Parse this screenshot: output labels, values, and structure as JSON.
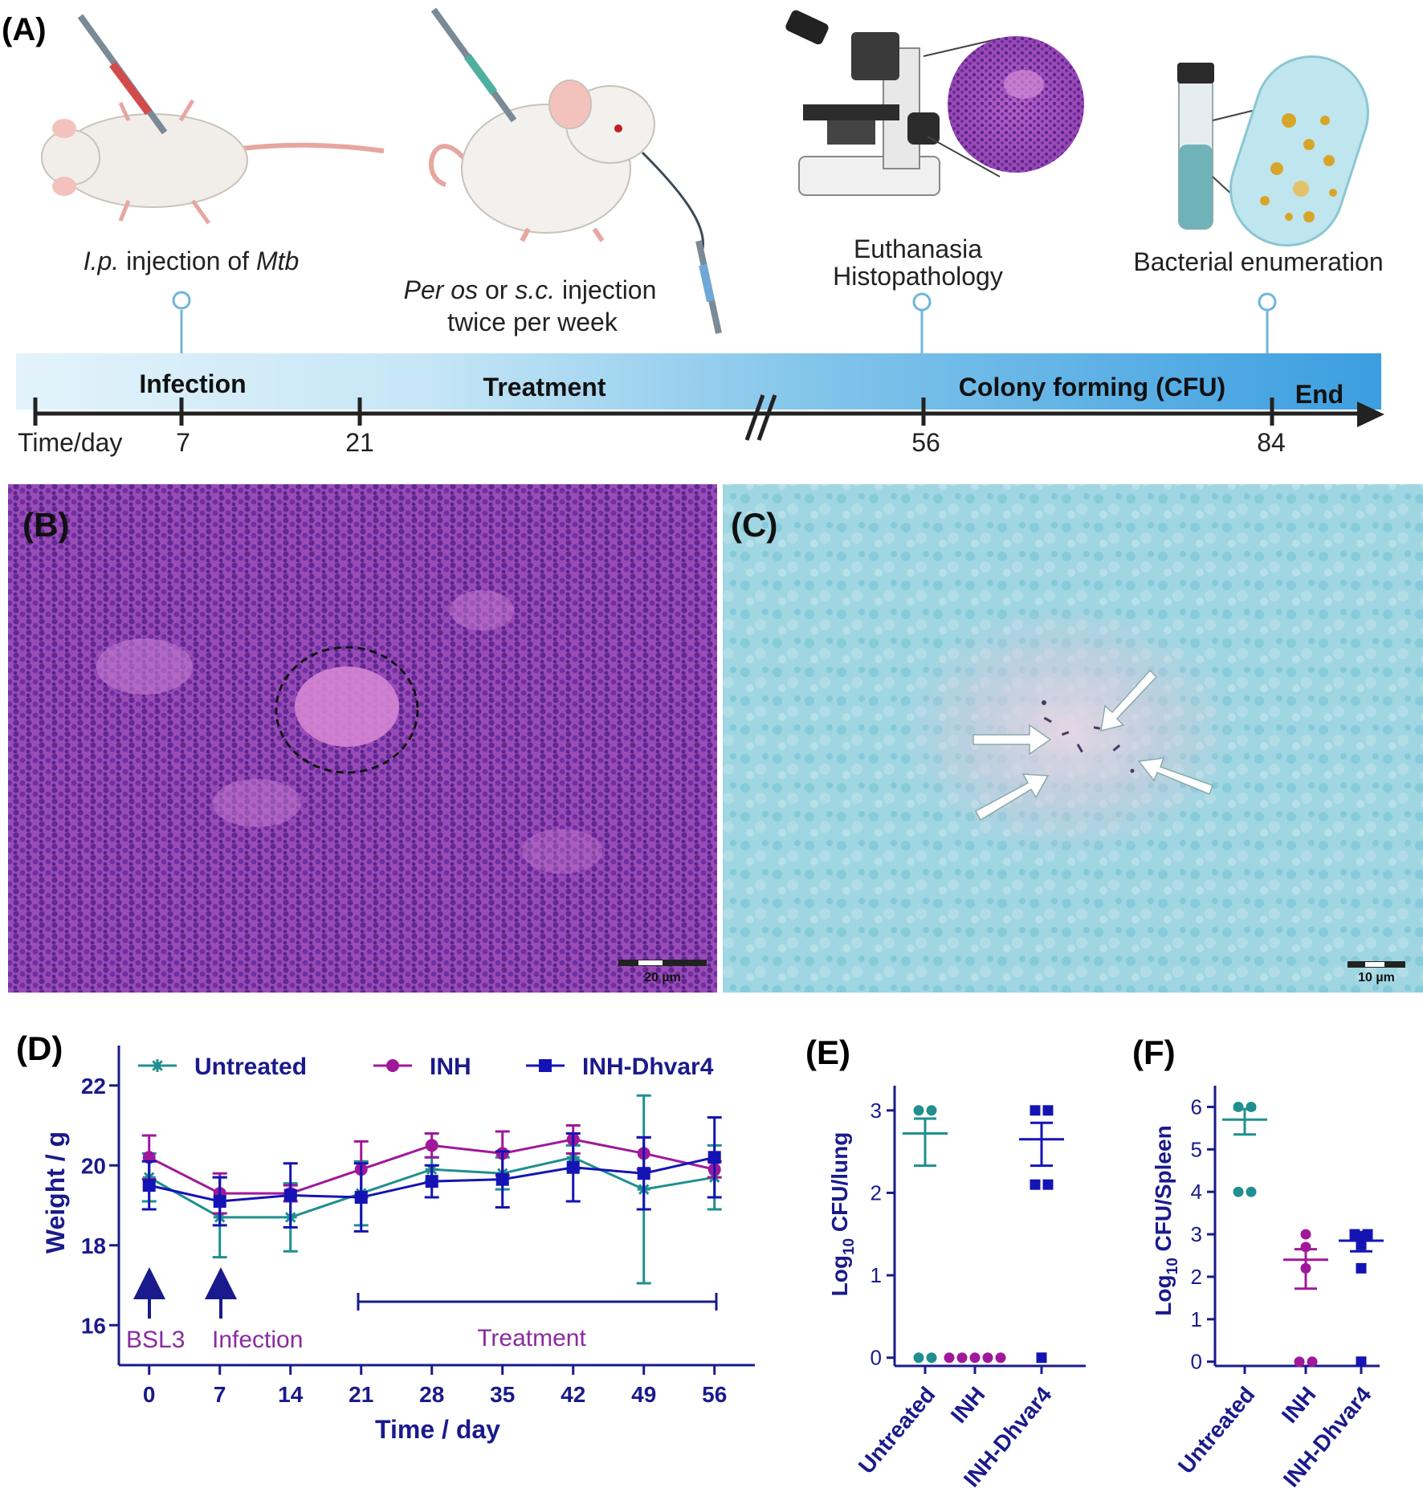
{
  "panelA": {
    "label": "(A)",
    "step1": {
      "pre": "I.p.",
      "mid": " injection of ",
      "post": "Mtb"
    },
    "step2": {
      "pre": "Per os",
      "mid": " or ",
      "mid2": "s.c.",
      "post": " injection",
      "line2": "twice per week"
    },
    "step3": {
      "line1": "Euthanasia",
      "line2": "Histopathology"
    },
    "step4": {
      "line1": "Bacterial enumeration"
    },
    "phases": [
      "Infection",
      "Treatment",
      "Colony forming (CFU)",
      "End"
    ],
    "axis_label": "Time/day",
    "ticks": [
      "7",
      "21",
      "56",
      "84"
    ]
  },
  "panelB": {
    "label": "(B)",
    "scalebar": "20 µm"
  },
  "panelC": {
    "label": "(C)",
    "scalebar": "10 µm"
  },
  "colors": {
    "untreated": "#1f8f8f",
    "inh": "#a0189a",
    "inhd": "#1414b4",
    "axis": "#1a1a8c",
    "annot": "#8a2aa0"
  },
  "panelD": {
    "label": "(D)",
    "annotations": {
      "bsl3": "BSL3",
      "infection": "Infection",
      "treatment": "Treatment"
    }
  },
  "panelE": {
    "label": "(E)"
  },
  "panelF": {
    "label": "(F)"
  },
  "chart_data": [
    {
      "type": "line",
      "panel": "D",
      "xlabel": "Time / day",
      "ylabel": "Weight / g",
      "x": [
        0,
        7,
        14,
        21,
        28,
        35,
        42,
        49,
        56
      ],
      "xticks": [
        "0",
        "7",
        "14",
        "21",
        "28",
        "35",
        "42",
        "49",
        "56"
      ],
      "yticks": [
        "16",
        "18",
        "20",
        "22"
      ],
      "xlim": [
        -3,
        60
      ],
      "ylim": [
        15,
        23
      ],
      "legend": "top",
      "series": [
        {
          "name": "Untreated",
          "key": "untreated",
          "marker": "star",
          "values": [
            19.7,
            18.7,
            18.7,
            19.3,
            19.9,
            19.8,
            20.2,
            19.4,
            19.7
          ],
          "err": [
            0.6,
            1.0,
            0.85,
            0.8,
            0.3,
            0.4,
            0.3,
            2.35,
            0.8
          ]
        },
        {
          "name": "INH",
          "key": "inh",
          "marker": "circle",
          "values": [
            20.2,
            19.3,
            19.3,
            19.9,
            20.5,
            20.3,
            20.65,
            20.3,
            19.9
          ],
          "err": [
            0.55,
            0.5,
            0.2,
            0.7,
            0.3,
            0.55,
            0.35,
            0.4,
            0.2
          ]
        },
        {
          "name": "INH-Dhvar4",
          "key": "inhd",
          "marker": "square",
          "values": [
            19.5,
            19.1,
            19.25,
            19.2,
            19.6,
            19.65,
            19.95,
            19.8,
            20.2
          ],
          "err": [
            0.6,
            0.6,
            0.8,
            0.85,
            0.4,
            0.7,
            0.85,
            0.9,
            1.0
          ]
        }
      ]
    },
    {
      "type": "scatter",
      "panel": "E",
      "ylabel_base": "Log",
      "ylabel_sub": "10",
      "ylabel_rest": " CFU/lung",
      "categories": [
        "Untreated",
        "INH",
        "INH-Dhvar4"
      ],
      "yticks": [
        "0",
        "1",
        "2",
        "3"
      ],
      "ylim": [
        -0.1,
        3.3
      ],
      "groups": [
        {
          "key": "untreated",
          "marker": "circle",
          "points": [
            3,
            3,
            0,
            0
          ],
          "mean": 2.72,
          "sem_low": 2.33,
          "sem_high": 2.9
        },
        {
          "key": "inh",
          "marker": "circle",
          "points": [
            0,
            0,
            0,
            0,
            0
          ],
          "mean": 0,
          "sem_low": 0,
          "sem_high": 0
        },
        {
          "key": "inhd",
          "marker": "square",
          "points": [
            3,
            3,
            2.1,
            2.1,
            0
          ],
          "mean": 2.65,
          "sem_low": 2.33,
          "sem_high": 2.85
        }
      ]
    },
    {
      "type": "scatter",
      "panel": "F",
      "ylabel_base": "Log",
      "ylabel_sub": "10",
      "ylabel_rest": " CFU/Spleen",
      "categories": [
        "Untreated",
        "INH",
        "INH-Dhvar4"
      ],
      "yticks": [
        "0",
        "1",
        "2",
        "3",
        "4",
        "5",
        "6"
      ],
      "ylim": [
        -0.1,
        6.5
      ],
      "groups": [
        {
          "key": "untreated",
          "marker": "circle",
          "points": [
            6.0,
            6.0,
            4.0,
            4.0
          ],
          "mean": 5.7,
          "sem_low": 5.35,
          "sem_high": 5.95
        },
        {
          "key": "inh",
          "marker": "circle",
          "points": [
            3.0,
            2.7,
            2.2,
            0,
            0
          ],
          "mean": 2.4,
          "sem_low": 1.72,
          "sem_high": 2.65
        },
        {
          "key": "inhd",
          "marker": "square",
          "points": [
            3.0,
            3.0,
            2.75,
            2.2,
            0
          ],
          "mean": 2.85,
          "sem_low": 2.6,
          "sem_high": 3.05
        }
      ]
    }
  ]
}
